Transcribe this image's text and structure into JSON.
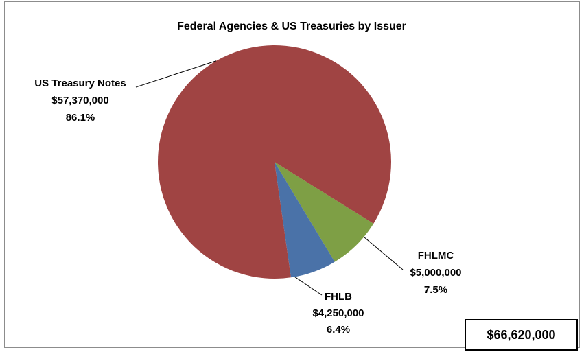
{
  "chart_data": {
    "type": "pie",
    "title": "Federal Agencies & US Treasuries by Issuer",
    "slices": [
      {
        "name": "US Treasury Notes",
        "value_text": "$57,370,000",
        "value": 57370000,
        "percent_text": "86.1%",
        "percent": 86.1,
        "color": "#a04443"
      },
      {
        "name": "FHLMC",
        "value_text": "$5,000,000",
        "value": 5000000,
        "percent_text": "7.5%",
        "percent": 7.5,
        "color": "#7e9f45"
      },
      {
        "name": "FHLB",
        "value_text": "$4,250,000",
        "value": 4250000,
        "percent_text": "6.4%",
        "percent": 6.4,
        "color": "#4a72a8"
      }
    ],
    "total_text": "$66,620,000",
    "total": 66620000
  }
}
